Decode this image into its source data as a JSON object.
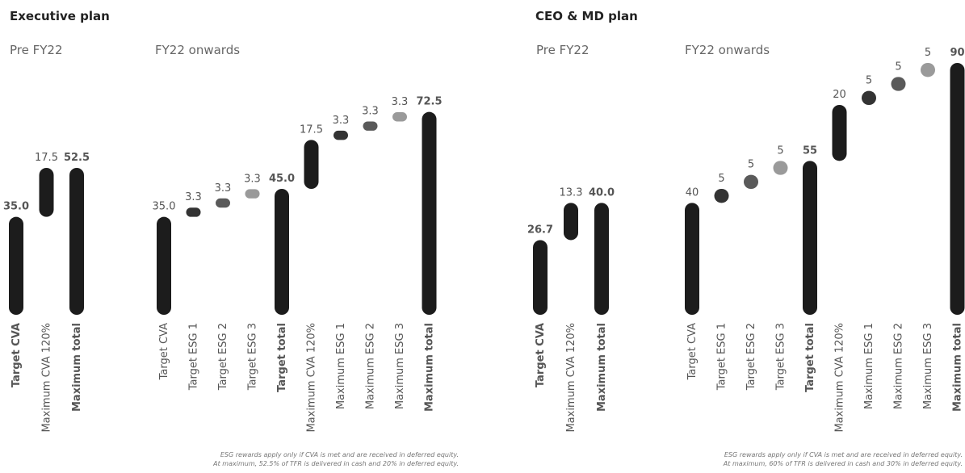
{
  "sections": [
    {
      "title": "Executive plan",
      "notes": [
        "ESG rewards apply only if CVA is met and are received in deferred equity.",
        "At maximum, 52.5% of TFR is delivered in cash and 20% in deferred equity."
      ]
    },
    {
      "title": "CEO & MD plan",
      "notes": [
        "ESG rewards apply only if CVA is met and are received in deferred equity.",
        "At maximum, 60% of TFR is delivered in cash and 30% in deferred equity."
      ]
    }
  ],
  "chart_data": [
    {
      "type": "waterfall",
      "subtitle": "Pre FY22",
      "categories": [
        "Target CVA",
        "Maximum CVA 120%",
        "Maximum total"
      ],
      "values": [
        35,
        17.5,
        52.5
      ],
      "value_labels": [
        "35.0",
        "17.5",
        "52.5"
      ],
      "colors": [
        "#1c1c1c",
        "#1c1c1c",
        "#1c1c1c"
      ],
      "totals": [
        0,
        2
      ],
      "bold": [
        0,
        2
      ],
      "ylim": [
        0,
        90
      ]
    },
    {
      "type": "waterfall",
      "subtitle": "FY22 onwards",
      "categories": [
        "Target CVA",
        "Target ESG 1",
        "Target ESG 2",
        "Target ESG 3",
        "Target total",
        "Maximum CVA 120%",
        "Maximum ESG 1",
        "Maximum ESG 2",
        "Maximum ESG 3",
        "Maximum total"
      ],
      "values": [
        35,
        3.3,
        3.3,
        3.3,
        45,
        17.5,
        3.3,
        3.3,
        3.3,
        72.5
      ],
      "value_labels": [
        "35.0",
        "3.3",
        "3.3",
        "3.3",
        "45.0",
        "17.5",
        "3.3",
        "3.3",
        "3.3",
        "72.5"
      ],
      "colors": [
        "#1c1c1c",
        "#333333",
        "#5a5a5a",
        "#9a9a9a",
        "#1c1c1c",
        "#1c1c1c",
        "#333333",
        "#5a5a5a",
        "#9a9a9a",
        "#1c1c1c"
      ],
      "totals": [
        0,
        4,
        9
      ],
      "bold": [
        4,
        9
      ],
      "ylim": [
        0,
        90
      ]
    },
    {
      "type": "waterfall",
      "subtitle": "Pre FY22",
      "categories": [
        "Target CVA",
        "Maximum CVA 120%",
        "Maximum total"
      ],
      "values": [
        26.7,
        13.3,
        40
      ],
      "value_labels": [
        "26.7",
        "13.3",
        "40.0"
      ],
      "colors": [
        "#1c1c1c",
        "#1c1c1c",
        "#1c1c1c"
      ],
      "totals": [
        0,
        2
      ],
      "bold": [
        0,
        2
      ],
      "ylim": [
        0,
        90
      ]
    },
    {
      "type": "waterfall",
      "subtitle": "FY22 onwards",
      "categories": [
        "Target CVA",
        "Target ESG 1",
        "Target ESG 2",
        "Target ESG 3",
        "Target total",
        "Maximum CVA 120%",
        "Maximum ESG 1",
        "Maximum ESG 2",
        "Maximum ESG 3",
        "Maximum total"
      ],
      "values": [
        40,
        5,
        5,
        5,
        55,
        20,
        5,
        5,
        5,
        90
      ],
      "value_labels": [
        "40",
        "5",
        "5",
        "5",
        "55",
        "20",
        "5",
        "5",
        "5",
        "90"
      ],
      "colors": [
        "#1c1c1c",
        "#333333",
        "#5a5a5a",
        "#9a9a9a",
        "#1c1c1c",
        "#1c1c1c",
        "#333333",
        "#5a5a5a",
        "#9a9a9a",
        "#1c1c1c"
      ],
      "totals": [
        0,
        4,
        9
      ],
      "bold": [
        4,
        9
      ],
      "ylim": [
        0,
        90
      ]
    }
  ]
}
